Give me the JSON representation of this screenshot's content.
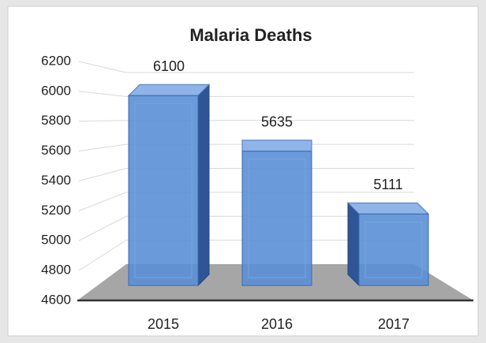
{
  "chart_data": {
    "type": "bar3d",
    "title": "Malaria Deaths",
    "categories": [
      "2015",
      "2016",
      "2017"
    ],
    "values": [
      6100,
      5635,
      5111
    ],
    "color": "#5b8fd6",
    "ylim": [
      4600,
      6200
    ],
    "yticks": [
      4600,
      4800,
      5000,
      5200,
      5400,
      5600,
      5800,
      6000,
      6200
    ],
    "grid": true
  }
}
